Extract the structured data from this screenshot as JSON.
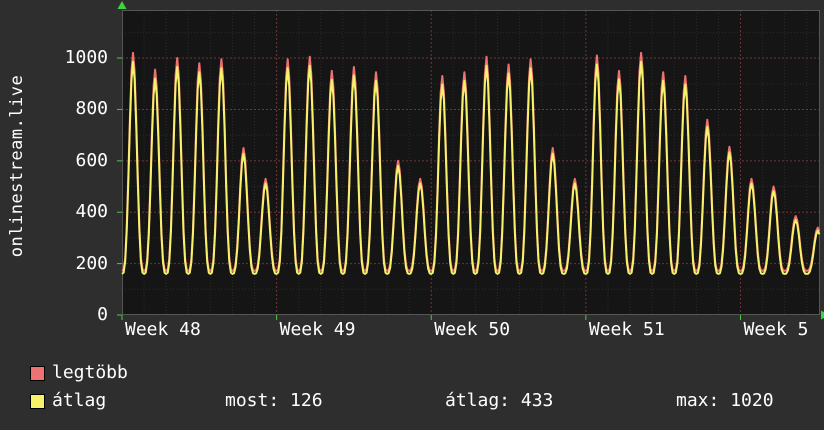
{
  "vertical_title": "onlinestream.live",
  "colors": {
    "background": "#2e2e2e",
    "plot_background": "#151515",
    "grid_major": "rgba(224,100,100,0.42)",
    "grid_minor": "rgba(180,180,180,0.14)",
    "axis_border": "#565656",
    "arrow_green": "#3fd23f",
    "text": "#ffffff",
    "legtobb": "#ee7272",
    "atlag": "#f6f26b"
  },
  "legend": [
    {
      "label": "legtöbb",
      "color": "#ee7272"
    },
    {
      "label": "átlag",
      "color": "#f6f26b"
    }
  ],
  "stats": [
    {
      "label": "most:",
      "value": "126"
    },
    {
      "label": "átlag:",
      "value": "433"
    },
    {
      "label": "max:",
      "value": "1020"
    }
  ],
  "chart_data": {
    "type": "line",
    "title": "onlinestream.live",
    "x_tick_labels": [
      "Week 48",
      "Week 49",
      "Week 50",
      "Week 51",
      "Week 5"
    ],
    "x_tick_days": [
      0,
      7,
      14,
      21,
      28
    ],
    "y_ticks": [
      0,
      200,
      400,
      600,
      800,
      1000
    ],
    "ylim": [
      0,
      1187
    ],
    "grid": true,
    "legend_position": "bottom-left",
    "last_day_fraction": 0.6,
    "series": [
      {
        "name": "legtöbb",
        "color": "#ee7272",
        "trough": 172,
        "day_peaks": [
          1020,
          955,
          1000,
          980,
          995,
          650,
          530,
          995,
          1005,
          950,
          965,
          945,
          600,
          530,
          930,
          945,
          1005,
          975,
          995,
          650,
          530,
          1010,
          950,
          1020,
          945,
          930,
          760,
          655,
          530,
          500,
          385,
          340
        ]
      },
      {
        "name": "átlag",
        "color": "#f6f26b",
        "trough": 160,
        "day_peaks": [
          985,
          920,
          965,
          945,
          960,
          628,
          512,
          960,
          970,
          915,
          932,
          912,
          580,
          512,
          897,
          912,
          970,
          940,
          960,
          628,
          512,
          975,
          917,
          985,
          912,
          897,
          733,
          633,
          512,
          482,
          370,
          328
        ]
      }
    ],
    "stats": {
      "most": 126,
      "atlag": 433,
      "max": 1020
    }
  }
}
